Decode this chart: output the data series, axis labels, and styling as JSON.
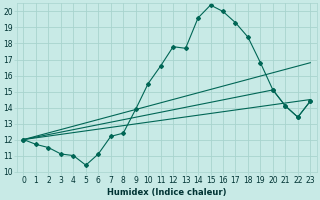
{
  "xlabel": "Humidex (Indice chaleur)",
  "xlim": [
    -0.5,
    23.5
  ],
  "ylim": [
    10,
    20.5
  ],
  "background_color": "#c8eae6",
  "grid_color": "#a8d4ce",
  "line_color": "#006655",
  "lines": [
    {
      "x": [
        0,
        1,
        2,
        3,
        4,
        5,
        6,
        7,
        8,
        9,
        10,
        11,
        12,
        13,
        14,
        15,
        16,
        17,
        18,
        19,
        20,
        21,
        22,
        23
      ],
      "y": [
        12.0,
        11.7,
        11.5,
        11.1,
        11.0,
        10.4,
        11.1,
        12.2,
        12.4,
        13.9,
        15.5,
        16.6,
        17.8,
        17.7,
        19.6,
        20.4,
        20.0,
        19.3,
        18.4,
        16.8,
        15.1,
        14.1,
        13.4,
        14.4
      ],
      "has_markers": true
    },
    {
      "x": [
        0,
        23
      ],
      "y": [
        12.0,
        16.8
      ],
      "has_markers": false
    },
    {
      "x": [
        0,
        20,
        21,
        22,
        23
      ],
      "y": [
        12.0,
        15.1,
        14.1,
        13.4,
        14.4
      ],
      "has_markers": true
    },
    {
      "x": [
        0,
        23
      ],
      "y": [
        12.0,
        14.5
      ],
      "has_markers": false
    }
  ],
  "xticks": [
    0,
    1,
    2,
    3,
    4,
    5,
    6,
    7,
    8,
    9,
    10,
    11,
    12,
    13,
    14,
    15,
    16,
    17,
    18,
    19,
    20,
    21,
    22,
    23
  ],
  "yticks": [
    10,
    11,
    12,
    13,
    14,
    15,
    16,
    17,
    18,
    19,
    20
  ],
  "fontsize": 5.5,
  "xlabel_fontsize": 6.0
}
